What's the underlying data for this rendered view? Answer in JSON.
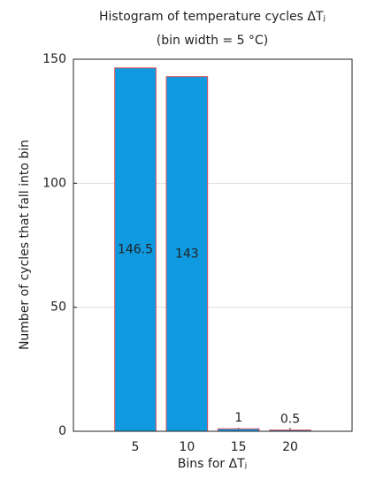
{
  "chart_data": {
    "type": "bar",
    "title": "Histogram of temperature cycles ΔTⱼ",
    "subtitle": "(bin width = 5 °C)",
    "x_label": "Bins for ΔTⱼ",
    "y_label": "Number of cycles that fall into bin",
    "x": [
      5,
      10,
      15,
      20
    ],
    "values": [
      146.5,
      143,
      1,
      0.5
    ],
    "color": "#0f9ae0",
    "edge_color": "#e0505a",
    "xlim": [
      -1,
      26
    ],
    "xticks": [
      5,
      10,
      15,
      20
    ],
    "ylim": [
      0,
      150
    ],
    "yticks": [
      0,
      50,
      100,
      150
    ],
    "grid": true
  }
}
